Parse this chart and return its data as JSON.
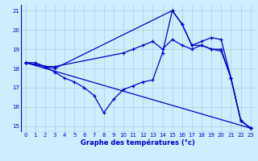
{
  "title": "Graphe des températures (°c)",
  "bg_color": "#cceeff",
  "grid_color": "#aaccdd",
  "line_color": "#0000cc",
  "xlim": [
    -0.5,
    23.5
  ],
  "ylim": [
    14.7,
    21.3
  ],
  "yticks": [
    15,
    16,
    17,
    18,
    19,
    20,
    21
  ],
  "xticks": [
    0,
    1,
    2,
    3,
    4,
    5,
    6,
    7,
    8,
    9,
    10,
    11,
    12,
    13,
    14,
    15,
    16,
    17,
    18,
    19,
    20,
    21,
    22,
    23
  ],
  "series": [
    {
      "x": [
        0,
        1,
        2,
        3,
        10,
        11,
        12,
        13,
        14,
        15,
        16,
        17,
        18,
        19,
        20,
        21,
        22,
        23
      ],
      "y": [
        18.3,
        18.3,
        18.1,
        18.1,
        18.8,
        19.0,
        19.2,
        19.4,
        19.0,
        19.5,
        19.2,
        19.0,
        19.2,
        19.0,
        18.9,
        17.5,
        15.3,
        14.9
      ]
    },
    {
      "x": [
        0,
        2,
        3,
        15,
        16,
        17,
        18,
        19,
        20,
        21,
        22,
        23
      ],
      "y": [
        18.3,
        18.1,
        18.0,
        21.0,
        20.3,
        19.2,
        19.4,
        19.6,
        19.5,
        17.5,
        15.3,
        14.9
      ]
    },
    {
      "x": [
        0,
        1,
        2,
        3,
        4,
        5,
        6,
        7,
        8,
        9,
        10,
        11,
        12,
        13,
        14,
        15,
        16,
        17,
        18,
        19,
        20,
        21,
        22,
        23
      ],
      "y": [
        18.3,
        18.2,
        18.1,
        17.8,
        17.5,
        17.3,
        17.0,
        16.6,
        15.7,
        16.4,
        16.9,
        17.1,
        17.3,
        17.4,
        18.8,
        21.0,
        20.3,
        19.2,
        19.2,
        19.0,
        19.0,
        17.5,
        15.3,
        14.9
      ]
    },
    {
      "x": [
        0,
        23
      ],
      "y": [
        18.3,
        14.9
      ]
    }
  ]
}
